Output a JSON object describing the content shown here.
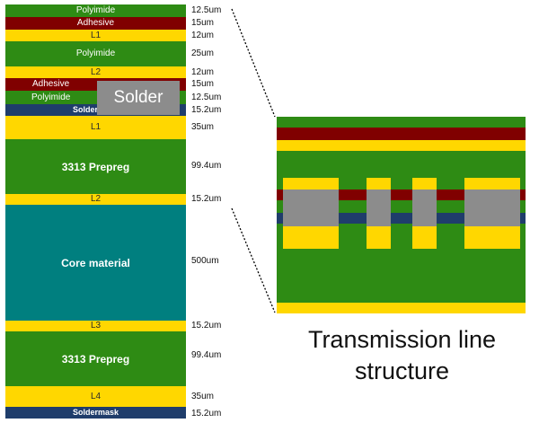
{
  "colors": {
    "polyimide": "#2e8b14",
    "adhesive": "#800000",
    "copper": "#ffd700",
    "soldermask": "#1f3d6b",
    "core": "#007f7f",
    "solder": "#8c8c8c"
  },
  "stackup": [
    {
      "label": "Polyimide",
      "thickness": "12.5um"
    },
    {
      "label": "Adhesive",
      "thickness": "15um"
    },
    {
      "label": "L1",
      "thickness": "12um"
    },
    {
      "label": "Polyimide",
      "thickness": "25um"
    },
    {
      "label": "L2",
      "thickness": "12um"
    },
    {
      "label": "Adhesive",
      "thickness": "15um"
    },
    {
      "label": "Polyimide",
      "thickness": "12.5um"
    },
    {
      "label": "Soldermask",
      "thickness": "15.2um"
    },
    {
      "label": "L1",
      "thickness": "35um"
    },
    {
      "label": "3313 Prepreg",
      "thickness": "99.4um"
    },
    {
      "label": "L2",
      "thickness": "15.2um"
    },
    {
      "label": "Core material",
      "thickness": "500um"
    },
    {
      "label": "L3",
      "thickness": "15.2um"
    },
    {
      "label": "3313 Prepreg",
      "thickness": "99.4um"
    },
    {
      "label": "L4",
      "thickness": "35um"
    },
    {
      "label": "Soldermask",
      "thickness": "15.2um"
    }
  ],
  "solder_label": "Solder",
  "caption": {
    "line1": "Transmission line",
    "line2": "structure"
  }
}
